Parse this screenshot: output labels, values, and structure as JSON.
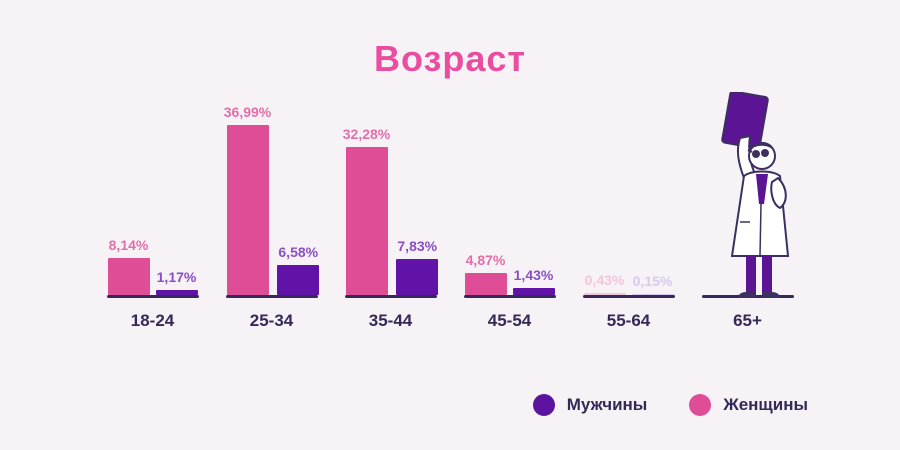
{
  "title": "Возраст",
  "chart_data": {
    "type": "bar",
    "title": "Возраст",
    "categories": [
      "18-24",
      "25-34",
      "35-44",
      "45-54",
      "55-64",
      "65+"
    ],
    "series": [
      {
        "name": "Женщины",
        "key": "women",
        "color": "#de4d96",
        "label_color": "#e170aa",
        "muted_color": "#f4c6dc",
        "muted_label_color": "#f4c6dc",
        "values": [
          8.14,
          36.99,
          32.28,
          4.87,
          0.43,
          null
        ]
      },
      {
        "name": "Мужчины",
        "key": "men",
        "color": "#6113a8",
        "label_color": "#8a4fc4",
        "muted_color": "#d9c9ef",
        "muted_label_color": "#d9c9ef",
        "values": [
          1.17,
          6.58,
          7.83,
          1.43,
          0.15,
          null
        ]
      }
    ],
    "value_suffix": "%",
    "decimal_separator": ",",
    "muted_below": 0.5,
    "ylim": [
      0,
      40
    ],
    "grid": false,
    "legend_position": "bottom-right"
  },
  "legend": [
    {
      "key": "men",
      "label": "Мужчины",
      "color": "#5c13a0"
    },
    {
      "key": "women",
      "label": "Женщины",
      "color": "#de4d96"
    }
  ],
  "illustration": "doctor-with-clipboard"
}
